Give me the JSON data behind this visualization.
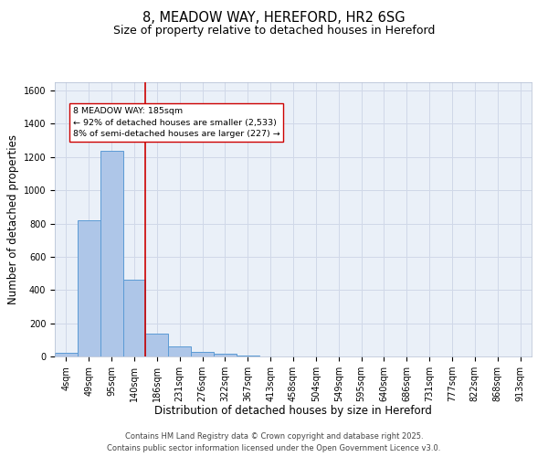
{
  "title": "8, MEADOW WAY, HEREFORD, HR2 6SG",
  "subtitle": "Size of property relative to detached houses in Hereford",
  "xlabel": "Distribution of detached houses by size in Hereford",
  "ylabel": "Number of detached properties",
  "bar_labels": [
    "4sqm",
    "49sqm",
    "95sqm",
    "140sqm",
    "186sqm",
    "231sqm",
    "276sqm",
    "322sqm",
    "367sqm",
    "413sqm",
    "458sqm",
    "504sqm",
    "549sqm",
    "595sqm",
    "640sqm",
    "686sqm",
    "731sqm",
    "777sqm",
    "822sqm",
    "868sqm",
    "913sqm"
  ],
  "bar_values": [
    22,
    820,
    1240,
    460,
    135,
    58,
    25,
    14,
    8,
    0,
    0,
    0,
    0,
    0,
    0,
    0,
    0,
    0,
    0,
    0,
    0
  ],
  "bar_color": "#aec6e8",
  "bar_edge_color": "#5b9bd5",
  "highlight_bar_index": 4,
  "highlight_line_color": "#cc0000",
  "annotation_text": "8 MEADOW WAY: 185sqm\n← 92% of detached houses are smaller (2,533)\n8% of semi-detached houses are larger (227) →",
  "annotation_box_color": "#ffffff",
  "annotation_box_edge_color": "#cc0000",
  "ylim": [
    0,
    1650
  ],
  "yticks": [
    0,
    200,
    400,
    600,
    800,
    1000,
    1200,
    1400,
    1600
  ],
  "grid_color": "#d0d8e8",
  "bg_color": "#eaf0f8",
  "footer_line1": "Contains HM Land Registry data © Crown copyright and database right 2025.",
  "footer_line2": "Contains public sector information licensed under the Open Government Licence v3.0.",
  "title_fontsize": 10.5,
  "subtitle_fontsize": 9,
  "axis_label_fontsize": 8.5,
  "tick_fontsize": 7,
  "annotation_fontsize": 6.8,
  "footer_fontsize": 6
}
